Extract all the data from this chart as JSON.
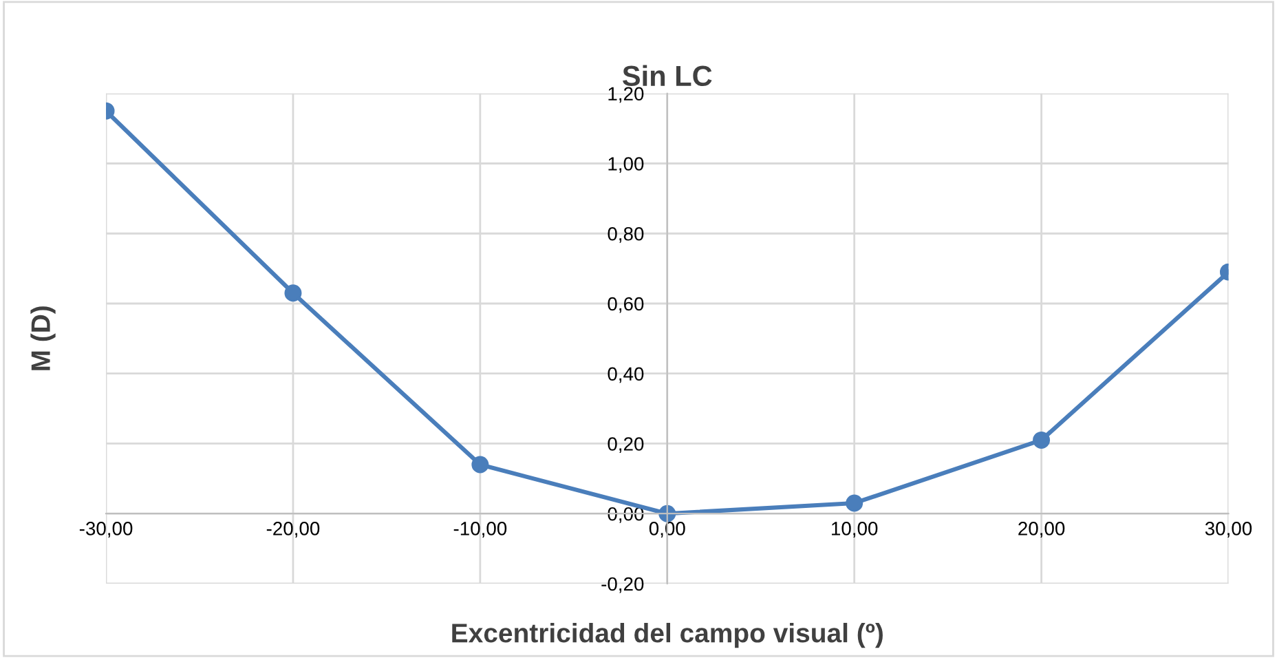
{
  "chart_data": {
    "type": "line",
    "title": "Sin LC",
    "xlabel": "Excentricidad del campo visual (º)",
    "ylabel": "M (D)",
    "x": [
      -30,
      -20,
      -10,
      0,
      10,
      20,
      30
    ],
    "series": [
      {
        "color": "#4a7ebb",
        "values": [
          1.15,
          0.63,
          0.14,
          0.0,
          0.03,
          0.21,
          0.69
        ]
      }
    ],
    "xlim": [
      -30,
      30
    ],
    "ylim": [
      -0.2,
      1.2
    ],
    "xticks": [
      {
        "value": -30,
        "label": "-30,00"
      },
      {
        "value": -20,
        "label": "-20,00"
      },
      {
        "value": -10,
        "label": "-10,00"
      },
      {
        "value": 0,
        "label": "0,00"
      },
      {
        "value": 10,
        "label": "10,00"
      },
      {
        "value": 20,
        "label": "20,00"
      },
      {
        "value": 30,
        "label": "30,00"
      }
    ],
    "yticks": [
      {
        "value": -0.2,
        "label": "-0,20"
      },
      {
        "value": 0,
        "label": "0,00"
      },
      {
        "value": 0.2,
        "label": "0,20"
      },
      {
        "value": 0.4,
        "label": "0,40"
      },
      {
        "value": 0.6,
        "label": "0,60"
      },
      {
        "value": 0.8,
        "label": "0,80"
      },
      {
        "value": 1.0,
        "label": "1,00"
      },
      {
        "value": 1.2,
        "label": "1,20"
      }
    ],
    "grid": true,
    "marker": "circle",
    "line_style": "solid"
  }
}
